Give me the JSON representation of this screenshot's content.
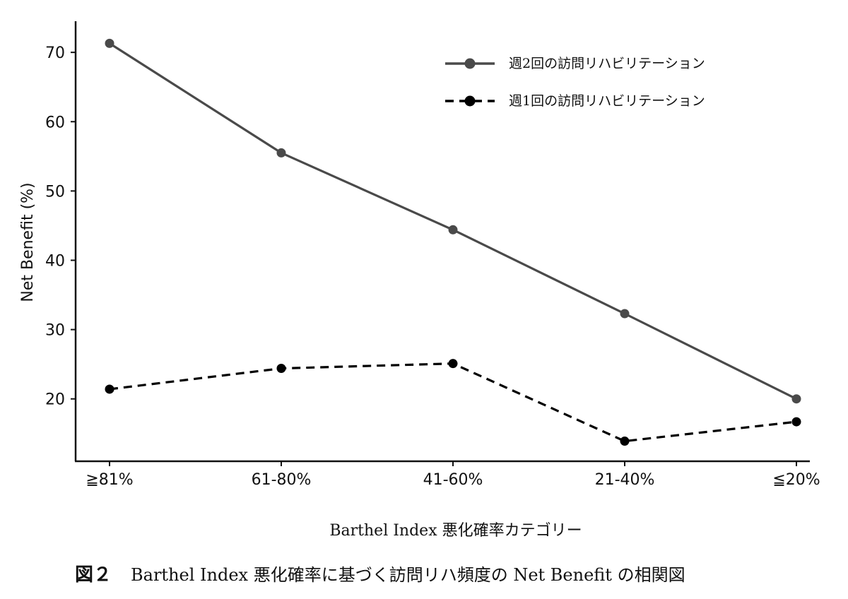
{
  "chart_data": {
    "type": "line",
    "categories": [
      "≧81%",
      "61-80%",
      "41-60%",
      "21-40%",
      "≦20%"
    ],
    "series": [
      {
        "name": "週2回の訪問リハビリテーション",
        "values": [
          71.3,
          55.5,
          44.4,
          32.3,
          20.0
        ],
        "color": "#4a4a4a",
        "dash": "solid"
      },
      {
        "name": "週1回の訪問リハビリテーション",
        "values": [
          21.4,
          24.4,
          25.1,
          13.9,
          16.7
        ],
        "color": "#000000",
        "dash": "dashed"
      }
    ],
    "ylabel": "Net Benefit (%)",
    "xlabel": "Barthel Index 悪化確率カテゴリー",
    "ylim": [
      11,
      74.5
    ],
    "yticks": [
      20,
      30,
      40,
      50,
      60,
      70
    ],
    "legend_position": "top-right",
    "grid": false
  },
  "caption": {
    "prefix": "図２",
    "text": "Barthel Index 悪化確率に基づく訪問リハ頻度の Net Benefit の相関図"
  }
}
